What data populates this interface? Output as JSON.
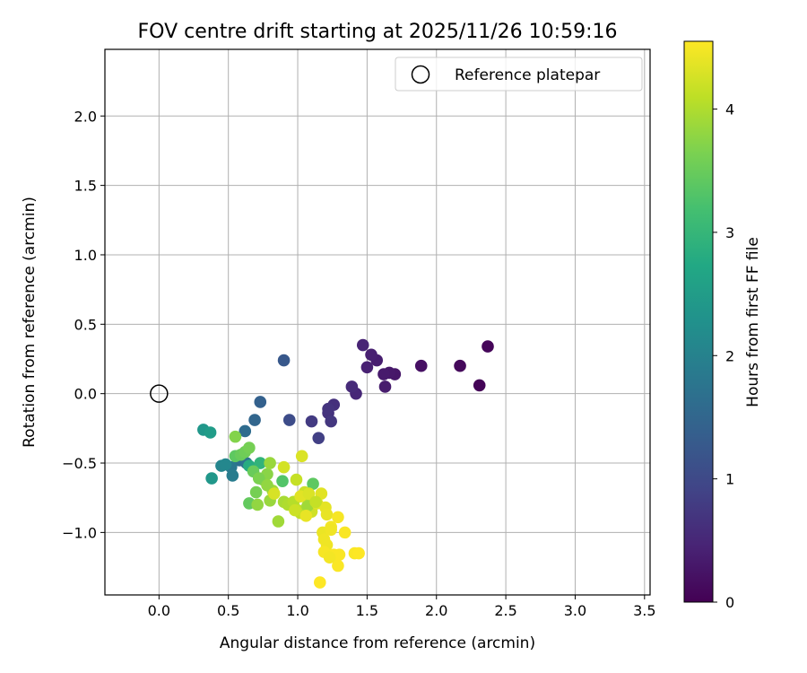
{
  "chart_data": {
    "type": "scatter",
    "title": "FOV centre drift starting at 2025/11/26 10:59:16",
    "xlabel": "Angular distance from reference (arcmin)",
    "ylabel": "Rotation from reference (arcmin)",
    "xlim": [
      -0.39,
      3.54
    ],
    "ylim": [
      -1.45,
      2.48
    ],
    "xticks": [
      0.0,
      0.5,
      1.0,
      1.5,
      2.0,
      2.5,
      3.0,
      3.5
    ],
    "xtick_labels": [
      "0.0",
      "0.5",
      "1.0",
      "1.5",
      "2.0",
      "2.5",
      "3.0",
      "3.5"
    ],
    "yticks": [
      -1.0,
      -0.5,
      0.0,
      0.5,
      1.0,
      1.5,
      2.0
    ],
    "ytick_labels": [
      "−1.0",
      "−0.5",
      "0.0",
      "0.5",
      "1.0",
      "1.5",
      "2.0"
    ],
    "grid": true,
    "legend": {
      "position": "top-right",
      "entries": [
        "Reference platepar"
      ]
    },
    "reference_point": {
      "x": 0.0,
      "y": 0.0,
      "label": "Reference platepar"
    },
    "colorbar": {
      "label": "Hours from first FF file",
      "min": 0,
      "max": 4.55,
      "colormap": "viridis",
      "ticks": [
        0,
        1,
        2,
        3,
        4
      ],
      "tick_labels": [
        "0",
        "1",
        "2",
        "3",
        "4"
      ]
    },
    "series": [
      {
        "name": "FOV centre drift",
        "points": [
          [
            2.31,
            0.06,
            0.04
          ],
          [
            2.37,
            0.34,
            0.07
          ],
          [
            2.17,
            0.2,
            0.1
          ],
          [
            1.89,
            0.2,
            0.2
          ],
          [
            1.7,
            0.14,
            0.27
          ],
          [
            1.66,
            0.15,
            0.3
          ],
          [
            1.62,
            0.14,
            0.33
          ],
          [
            1.63,
            0.05,
            0.35
          ],
          [
            1.57,
            0.24,
            0.37
          ],
          [
            1.53,
            0.28,
            0.4
          ],
          [
            1.5,
            0.19,
            0.42
          ],
          [
            1.47,
            0.35,
            0.45
          ],
          [
            1.42,
            0.0,
            0.5
          ],
          [
            1.39,
            0.05,
            0.55
          ],
          [
            1.26,
            -0.08,
            0.62
          ],
          [
            1.22,
            -0.14,
            0.65
          ],
          [
            1.22,
            -0.11,
            0.68
          ],
          [
            1.24,
            -0.2,
            0.72
          ],
          [
            1.1,
            -0.2,
            0.78
          ],
          [
            1.15,
            -0.32,
            0.85
          ],
          [
            0.94,
            -0.19,
            1.05
          ],
          [
            0.9,
            0.24,
            1.25
          ],
          [
            0.73,
            -0.06,
            1.4
          ],
          [
            0.69,
            -0.19,
            1.5
          ],
          [
            0.62,
            -0.27,
            1.6
          ],
          [
            0.58,
            -0.48,
            1.65
          ],
          [
            0.63,
            -0.5,
            1.72
          ],
          [
            0.52,
            -0.53,
            1.8
          ],
          [
            0.53,
            -0.59,
            1.9
          ],
          [
            0.45,
            -0.52,
            2.05
          ],
          [
            0.48,
            -0.51,
            2.1
          ],
          [
            0.32,
            -0.26,
            2.4
          ],
          [
            0.37,
            -0.28,
            2.5
          ],
          [
            0.38,
            -0.61,
            2.4
          ],
          [
            0.65,
            -0.52,
            2.8
          ],
          [
            0.73,
            -0.5,
            2.95
          ],
          [
            0.55,
            -0.45,
            3.4
          ],
          [
            0.59,
            -0.44,
            3.5
          ],
          [
            0.62,
            -0.42,
            3.55
          ],
          [
            0.65,
            -0.39,
            3.6
          ],
          [
            0.55,
            -0.31,
            3.7
          ],
          [
            0.65,
            -0.79,
            3.45
          ],
          [
            0.7,
            -0.71,
            3.6
          ],
          [
            0.75,
            -0.62,
            3.7
          ],
          [
            0.78,
            -0.58,
            3.75
          ],
          [
            0.71,
            -0.8,
            3.8
          ],
          [
            0.8,
            -0.77,
            3.85
          ],
          [
            0.82,
            -0.7,
            3.9
          ],
          [
            0.89,
            -0.63,
            3.3
          ],
          [
            0.68,
            -0.56,
            3.5
          ],
          [
            0.72,
            -0.61,
            3.65
          ],
          [
            0.78,
            -0.66,
            3.8
          ],
          [
            0.8,
            -0.5,
            3.85
          ],
          [
            0.86,
            -0.92,
            3.9
          ],
          [
            0.9,
            -0.78,
            3.95
          ],
          [
            0.93,
            -0.8,
            4.0
          ],
          [
            0.97,
            -0.78,
            4.05
          ],
          [
            1.0,
            -0.84,
            4.1
          ],
          [
            1.02,
            -0.86,
            4.12
          ],
          [
            0.99,
            -0.62,
            4.15
          ],
          [
            1.05,
            -0.71,
            4.18
          ],
          [
            1.08,
            -0.78,
            4.2
          ],
          [
            1.1,
            -0.85,
            4.22
          ],
          [
            1.11,
            -0.65,
            3.4
          ],
          [
            1.07,
            -0.81,
            3.9
          ],
          [
            0.9,
            -0.53,
            4.25
          ],
          [
            0.83,
            -0.72,
            4.28
          ],
          [
            1.03,
            -0.45,
            4.3
          ],
          [
            1.14,
            -0.79,
            4.32
          ],
          [
            1.17,
            -0.72,
            4.35
          ],
          [
            1.2,
            -0.82,
            4.38
          ],
          [
            1.21,
            -0.87,
            4.4
          ],
          [
            1.18,
            -1.0,
            4.42
          ],
          [
            1.19,
            -1.05,
            4.45
          ],
          [
            1.21,
            -1.09,
            4.45
          ],
          [
            1.24,
            -0.96,
            4.48
          ],
          [
            1.29,
            -0.89,
            4.5
          ],
          [
            1.34,
            -1.0,
            4.52
          ],
          [
            1.26,
            -1.16,
            4.52
          ],
          [
            1.3,
            -1.16,
            4.52
          ],
          [
            1.29,
            -1.24,
            4.53
          ],
          [
            1.19,
            -1.14,
            4.5
          ],
          [
            1.41,
            -1.15,
            4.53
          ],
          [
            1.44,
            -1.15,
            4.55
          ],
          [
            1.16,
            -1.36,
            4.55
          ],
          [
            1.06,
            -0.88,
            4.4
          ],
          [
            1.02,
            -0.74,
            4.35
          ],
          [
            1.08,
            -0.72,
            4.3
          ],
          [
            0.98,
            -0.84,
            4.2
          ],
          [
            1.13,
            -0.78,
            4.15
          ],
          [
            1.23,
            -1.18,
            4.48
          ],
          [
            1.24,
            -0.98,
            4.46
          ]
        ]
      }
    ]
  }
}
